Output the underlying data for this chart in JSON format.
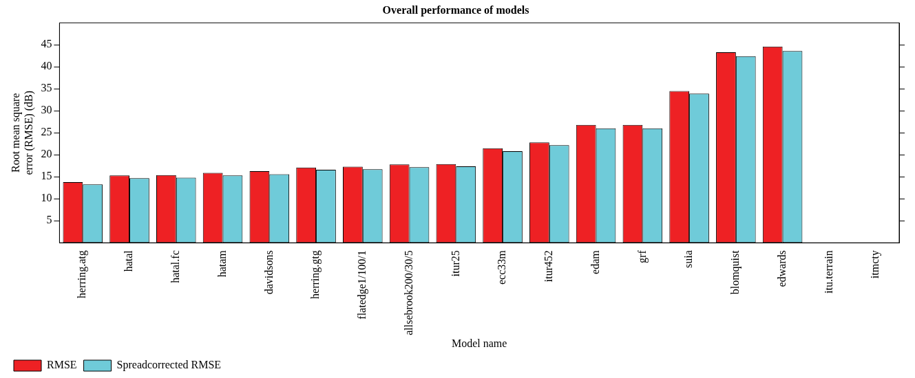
{
  "chart_data": {
    "type": "bar",
    "title": "Overall performance of models",
    "xlabel": "Model name",
    "ylabel": "Root mean square\nerror (RMSE) (dB)",
    "categories": [
      "herring.atg",
      "hatal",
      "hatal.fc",
      "hatam",
      "davidsons",
      "herring.gtg",
      "flatedge1/100/1",
      "allsebrook200/30/5",
      "itur25",
      "ecc33m",
      "itur452",
      "edam",
      "grf",
      "suia",
      "blomquist",
      "edwards",
      "itu.terrain",
      "itmcty"
    ],
    "series": [
      {
        "name": "RMSE",
        "color": "#ee2124",
        "values": [
          13.8,
          15.3,
          15.4,
          15.9,
          16.3,
          17.1,
          17.3,
          17.8,
          17.9,
          21.5,
          22.8,
          26.8,
          26.8,
          34.5,
          43.3,
          44.6,
          null,
          null
        ]
      },
      {
        "name": "Spreadcorrected RMSE",
        "color": "#6fcbd9",
        "values": [
          13.3,
          14.7,
          14.8,
          15.3,
          15.6,
          16.6,
          16.7,
          17.2,
          17.4,
          20.8,
          22.2,
          26.0,
          26.0,
          33.9,
          42.4,
          43.6,
          null,
          null
        ]
      }
    ],
    "ylim": [
      0,
      50
    ],
    "yticks": [
      5,
      10,
      15,
      20,
      25,
      30,
      35,
      40,
      45
    ],
    "grid": false,
    "legend": "bottom left"
  }
}
